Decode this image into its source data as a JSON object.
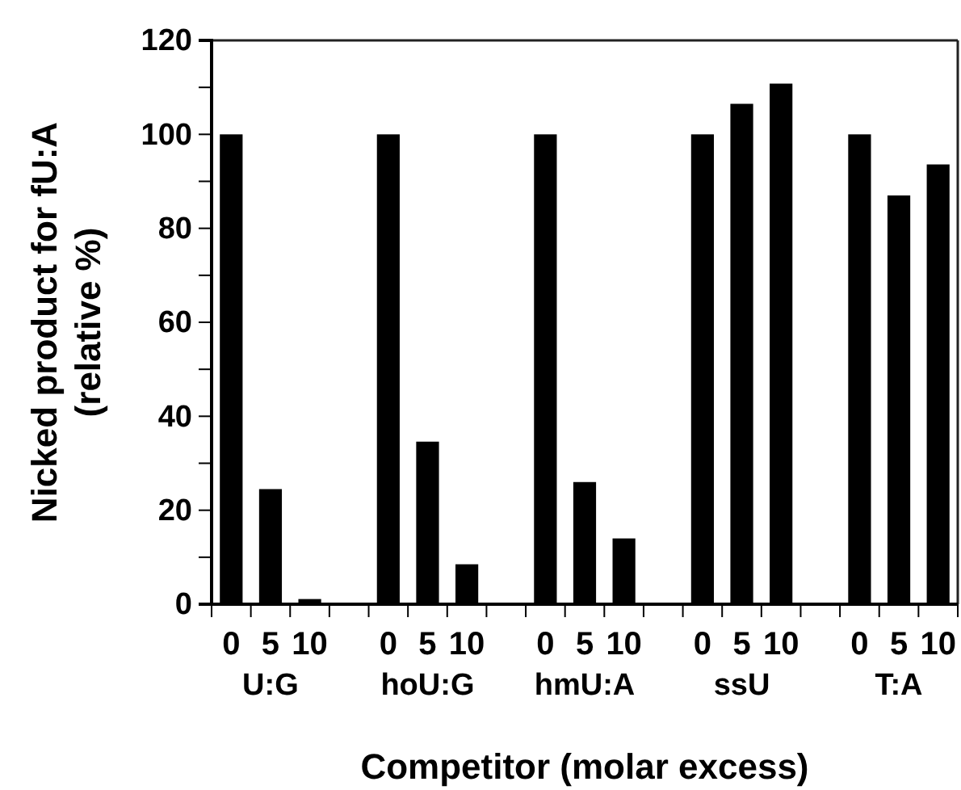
{
  "chart_data": {
    "type": "bar",
    "ylabel": "Nicked product for fU:A\n(relative %)",
    "xlabel": "Competitor (molar excess)",
    "categories": [
      "0",
      "5",
      "10",
      "0",
      "5",
      "10",
      "0",
      "5",
      "10",
      "0",
      "5",
      "10",
      "0",
      "5",
      "10"
    ],
    "values": [
      100,
      24.5,
      1.1,
      100,
      34.6,
      8.5,
      100,
      26,
      14,
      100,
      106.5,
      110.8,
      100,
      87,
      93.6
    ],
    "color": "#000000",
    "ylim": [
      0,
      120
    ],
    "yticks": [
      0,
      {
        "value": 10,
        "label": null
      },
      20,
      {
        "value": 30,
        "label": null
      },
      40,
      {
        "value": 50,
        "label": null
      },
      60,
      {
        "value": 70,
        "label": null
      },
      80,
      {
        "value": 90,
        "label": null
      },
      100,
      {
        "value": 110,
        "label": null
      },
      120
    ],
    "annotations": [
      "U:G",
      "hoU:G",
      "hmU:A",
      "ssU",
      "T:A"
    ],
    "grid": false
  }
}
